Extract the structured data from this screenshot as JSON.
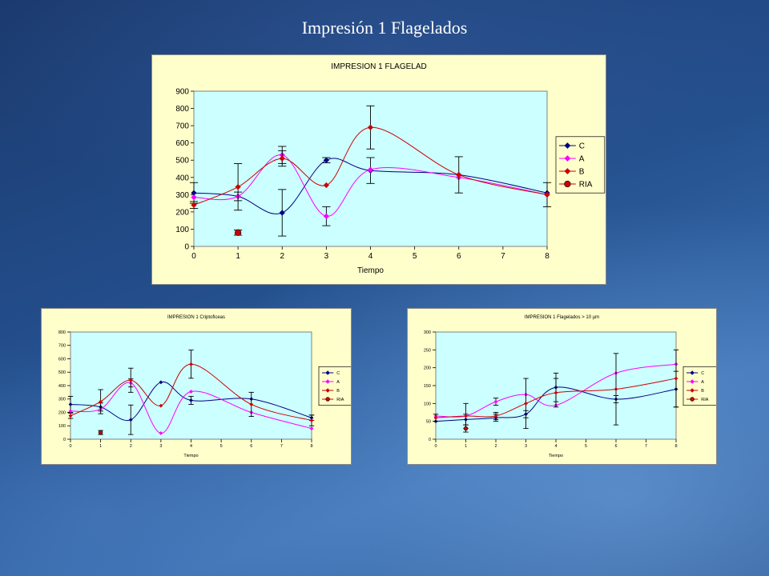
{
  "slide": {
    "title": "Impresión 1 Flagelados"
  },
  "colors": {
    "C": "#000080",
    "A": "#ff00ff",
    "B": "#cc0000",
    "RIA": "#cc0000",
    "plot_bg": "#ccffff",
    "frame_bg": "#ffffcc"
  },
  "chart_data": [
    {
      "id": "main",
      "type": "line",
      "title": "IMPRESION 1 FLAGELAD",
      "xlabel": "Tiempo",
      "ylabel": "",
      "xlim": [
        0,
        8
      ],
      "ylim": [
        0,
        900
      ],
      "xticks": [
        0,
        1,
        2,
        3,
        4,
        5,
        6,
        7,
        8
      ],
      "yticks": [
        0,
        100,
        200,
        300,
        400,
        500,
        600,
        700,
        800,
        900
      ],
      "legend_position": "right",
      "grid": false,
      "series": [
        {
          "name": "C",
          "marker": "diamond",
          "x": [
            0,
            1,
            2,
            3,
            4,
            6,
            8
          ],
          "y": [
            310,
            290,
            195,
            500,
            440,
            415,
            310
          ],
          "err": [
            60,
            25,
            135,
            15,
            75,
            0,
            0
          ]
        },
        {
          "name": "A",
          "marker": "diamond",
          "x": [
            0,
            1,
            2,
            3,
            4,
            6,
            8
          ],
          "y": [
            285,
            290,
            530,
            175,
            445,
            400,
            300
          ],
          "err": [
            0,
            0,
            50,
            55,
            0,
            0,
            0
          ]
        },
        {
          "name": "B",
          "marker": "diamond",
          "x": [
            0,
            1,
            2,
            3,
            4,
            6,
            8
          ],
          "y": [
            240,
            345,
            510,
            355,
            690,
            415,
            300
          ],
          "err": [
            20,
            135,
            45,
            0,
            125,
            105,
            70
          ]
        },
        {
          "name": "RIA",
          "marker": "circle",
          "x": [
            1
          ],
          "y": [
            80
          ],
          "err": [
            15
          ]
        }
      ]
    },
    {
      "id": "cripto",
      "type": "line",
      "title": "IMPRESION 1 Criptoficeas",
      "xlabel": "Tiempo",
      "ylabel": "",
      "xlim": [
        0,
        8
      ],
      "ylim": [
        0,
        800
      ],
      "xticks": [
        0,
        1,
        2,
        3,
        4,
        5,
        6,
        7,
        8
      ],
      "yticks": [
        0,
        100,
        200,
        300,
        400,
        500,
        600,
        700,
        800
      ],
      "legend_position": "right",
      "grid": false,
      "series": [
        {
          "name": "C",
          "marker": "diamond",
          "x": [
            0,
            1,
            2,
            3,
            4,
            6,
            8
          ],
          "y": [
            260,
            240,
            145,
            425,
            290,
            300,
            160
          ],
          "err": [
            60,
            30,
            110,
            0,
            30,
            0,
            20
          ]
        },
        {
          "name": "A",
          "marker": "diamond",
          "x": [
            0,
            1,
            2,
            3,
            4,
            6,
            8
          ],
          "y": [
            210,
            225,
            420,
            45,
            355,
            200,
            80
          ],
          "err": [
            0,
            0,
            30,
            0,
            0,
            0,
            0
          ]
        },
        {
          "name": "B",
          "marker": "diamond",
          "x": [
            0,
            1,
            2,
            3,
            4,
            6,
            8
          ],
          "y": [
            175,
            280,
            440,
            250,
            560,
            260,
            140
          ],
          "err": [
            20,
            90,
            90,
            0,
            105,
            90,
            40
          ]
        },
        {
          "name": "RIA",
          "marker": "circle",
          "x": [
            1
          ],
          "y": [
            50
          ],
          "err": [
            15
          ]
        }
      ]
    },
    {
      "id": "flag10",
      "type": "line",
      "title": "IMPRESION 1 Flagelados > 10 µm",
      "xlabel": "Tiempo",
      "ylabel": "",
      "xlim": [
        0,
        8
      ],
      "ylim": [
        0,
        300
      ],
      "xticks": [
        0,
        1,
        2,
        3,
        4,
        5,
        6,
        7,
        8
      ],
      "yticks": [
        0,
        50,
        100,
        150,
        200,
        250,
        300
      ],
      "legend_position": "right",
      "grid": false,
      "series": [
        {
          "name": "C",
          "marker": "diamond",
          "x": [
            0,
            1,
            2,
            3,
            4,
            6,
            8
          ],
          "y": [
            50,
            55,
            60,
            70,
            145,
            112,
            140
          ],
          "err": [
            0,
            15,
            10,
            10,
            40,
            10,
            50
          ]
        },
        {
          "name": "A",
          "marker": "diamond",
          "x": [
            0,
            1,
            2,
            3,
            4,
            6,
            8
          ],
          "y": [
            65,
            65,
            105,
            125,
            95,
            185,
            210
          ],
          "err": [
            0,
            0,
            10,
            0,
            0,
            0,
            0
          ]
        },
        {
          "name": "B",
          "marker": "diamond",
          "x": [
            0,
            1,
            2,
            3,
            4,
            6,
            8
          ],
          "y": [
            60,
            65,
            65,
            100,
            130,
            140,
            170
          ],
          "err": [
            10,
            35,
            10,
            70,
            40,
            100,
            80
          ]
        },
        {
          "name": "RIA",
          "marker": "circle",
          "x": [
            1
          ],
          "y": [
            30
          ],
          "err": [
            10
          ]
        }
      ]
    }
  ]
}
